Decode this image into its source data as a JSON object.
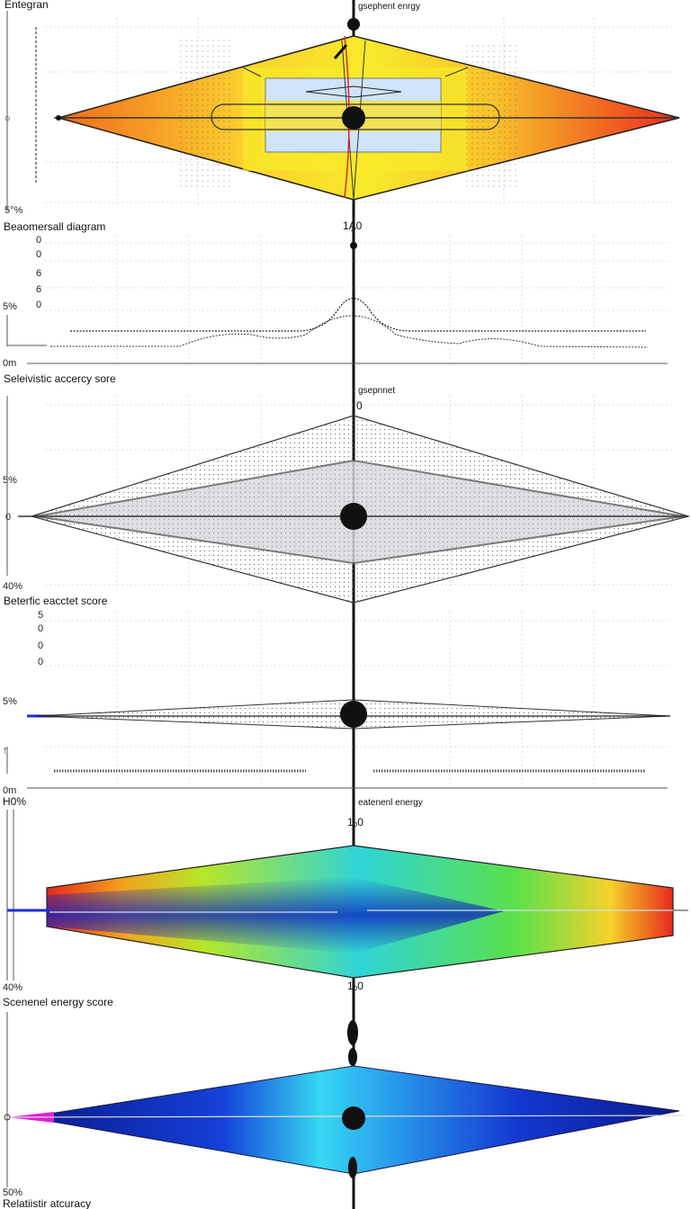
{
  "panels": {
    "p1": {
      "title": "Entegran",
      "center_label": "gsephent enrgy",
      "pct_label": "5°%"
    },
    "p2": {
      "title": "Beaomersall diagram",
      "top_label": "1Ḁ0",
      "pct_label": "5%",
      "zero_label": "0m",
      "ticks": [
        "0",
        "0",
        "6",
        "6",
        "0"
      ]
    },
    "p3": {
      "title": "Seleivistic accercy sore",
      "center_label": "gsepnnet",
      "top_zero": "0",
      "pct_label": "5%",
      "zero_label": "0",
      "bottom_pct": "40%"
    },
    "p4": {
      "title": "Beterfic eacctet score",
      "pct_label": "5%",
      "zero_label": "0m",
      "ticks": [
        "5",
        "0",
        "0",
        "0"
      ]
    },
    "p5": {
      "title": "H0%",
      "center_label": "eatenenl energy",
      "top_label": "1ₒ0",
      "bottom_label": "1ₒ0",
      "pct_label": "40%"
    },
    "p6": {
      "title": "Scenenel energy score",
      "pct_label": "50%",
      "bottom_title": "Relatiistir atcuracy"
    }
  },
  "colors": {
    "accent_red": "#e8241a",
    "accent_yellow": "#f7ee2a",
    "accent_blue": "#0a2fc8",
    "accent_cyan": "#36e0f0",
    "accent_magenta": "#e020d8"
  }
}
